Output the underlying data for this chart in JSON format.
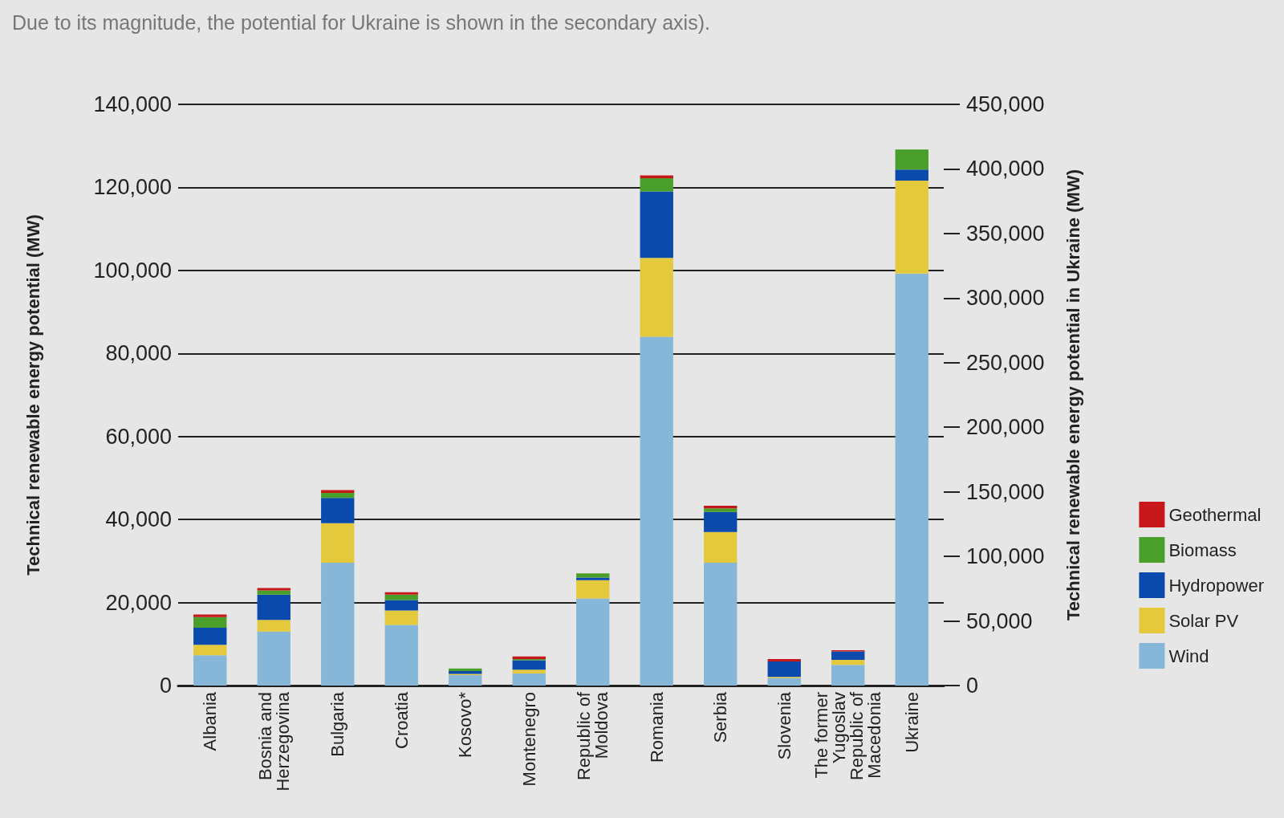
{
  "chart_data": {
    "type": "bar",
    "title": "Due to its magnitude, the potential for Ukraine is shown in the secondary axis).",
    "ylabel": "Technical renewable energy potential (MW)",
    "y2label": "Technical renewable energy potential in Ukraine (MW)",
    "categories": [
      "Albania",
      "Bosnia and Herzegovina",
      "Bulgaria",
      "Croatia",
      "Kosovo*",
      "Montenegro",
      "Republic of Moldova",
      "Romania",
      "Serbia",
      "Slovenia",
      "The former Yugoslav Republic of Macedonia",
      "Ukraine"
    ],
    "stacked": true,
    "series": [
      {
        "name": "Wind",
        "color": "#86b6d8",
        "values": [
          7300,
          13000,
          29600,
          14600,
          2500,
          2900,
          21000,
          84000,
          29600,
          1800,
          5000,
          null
        ]
      },
      {
        "name": "Solar PV",
        "color": "#e5c93d",
        "values": [
          2500,
          2800,
          9500,
          3500,
          300,
          900,
          4400,
          19000,
          7400,
          300,
          1200,
          null
        ]
      },
      {
        "name": "Hydropower",
        "color": "#0a4aad",
        "values": [
          4100,
          6100,
          6100,
          2500,
          700,
          2300,
          600,
          16000,
          4800,
          3700,
          2000,
          null
        ]
      },
      {
        "name": "Biomass",
        "color": "#4a9e2a",
        "values": [
          2600,
          1000,
          1200,
          1300,
          600,
          300,
          1000,
          3200,
          900,
          null,
          null,
          null
        ]
      },
      {
        "name": "Geothermal",
        "color": "#c8171b",
        "values": [
          600,
          600,
          700,
          600,
          null,
          600,
          null,
          700,
          600,
          600,
          300,
          null
        ]
      },
      {
        "axis": "y2",
        "color": "#86b6d8",
        "values": [
          null,
          null,
          null,
          null,
          null,
          null,
          null,
          null,
          null,
          null,
          null,
          319000
        ]
      },
      {
        "axis": "y2",
        "color": "#e5c93d",
        "values": [
          null,
          null,
          null,
          null,
          null,
          null,
          null,
          null,
          null,
          null,
          null,
          72000
        ]
      },
      {
        "axis": "y2",
        "color": "#0a4aad",
        "values": [
          null,
          null,
          null,
          null,
          null,
          null,
          null,
          null,
          null,
          null,
          null,
          8500
        ]
      },
      {
        "axis": "y2",
        "color": "#4a9e2a",
        "values": [
          null,
          null,
          null,
          null,
          null,
          null,
          null,
          null,
          null,
          null,
          null,
          15500
        ]
      }
    ],
    "ylim": [
      0,
      140000
    ],
    "yticks": [
      {
        "value": 0,
        "label": "0"
      },
      {
        "value": 20000,
        "label": "20,000"
      },
      {
        "value": 40000,
        "label": "40,000"
      },
      {
        "value": 60000,
        "label": "60,000"
      },
      {
        "value": 80000,
        "label": "80,000"
      },
      {
        "value": 100000,
        "label": "100,000"
      },
      {
        "value": 120000,
        "label": "120,000"
      },
      {
        "value": 140000,
        "label": "140,000"
      }
    ],
    "y2lim": [
      0,
      450000
    ],
    "y2ticks": [
      {
        "value": 0,
        "label": "0"
      },
      {
        "value": 50000,
        "label": "50,000"
      },
      {
        "value": 100000,
        "label": "100,000"
      },
      {
        "value": 150000,
        "label": "150,000"
      },
      {
        "value": 200000,
        "label": "200,000"
      },
      {
        "value": 250000,
        "label": "250,000"
      },
      {
        "value": 300000,
        "label": "300,000"
      },
      {
        "value": 350000,
        "label": "350,000"
      },
      {
        "value": 400000,
        "label": "400,000"
      },
      {
        "value": 450000,
        "label": "450,000"
      }
    ],
    "grid": "y",
    "legend": "right"
  }
}
